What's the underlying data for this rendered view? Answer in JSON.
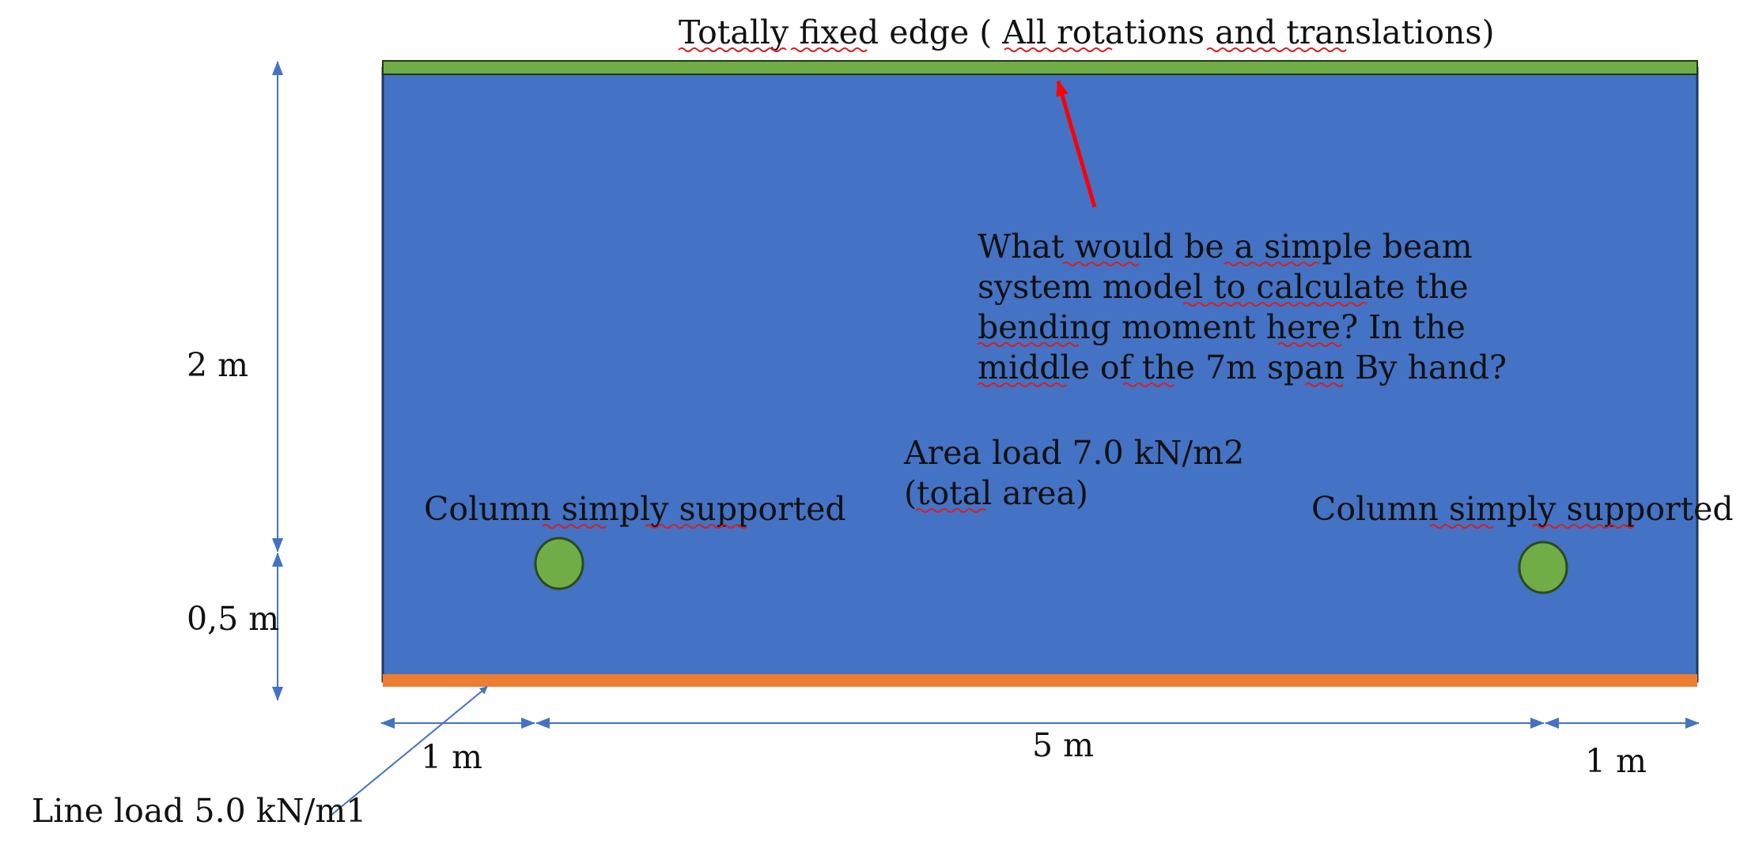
{
  "labels": {
    "top_edge": "Totally fixed edge ( All rotations and translations)",
    "question": [
      "What would be a simple beam",
      "system model to calculate the",
      "bending moment here? In the",
      "middle of the 7m span By hand?"
    ],
    "area_load": [
      "Area load 7.0 kN/m2",
      "(total area)"
    ],
    "column_left": "Column simply supported",
    "column_right": "Column simply supported",
    "dim_vertical_upper": "2 m",
    "dim_vertical_lower": "0,5 m",
    "dim_horizontal_left": "1 m",
    "dim_horizontal_mid": "5 m",
    "dim_horizontal_right": "1 m",
    "line_load": "Line load 5.0 kN/m1"
  },
  "colors": {
    "slab": "#4472c4",
    "slab_border": "#1f3864",
    "fixed_edge": "#70ad47",
    "line_load_edge": "#ed7d31",
    "column": "#70ad47",
    "dimension_line": "#4472c4",
    "pointer_arrow": "#ff0000",
    "spell_check_underline": "#d62020"
  }
}
